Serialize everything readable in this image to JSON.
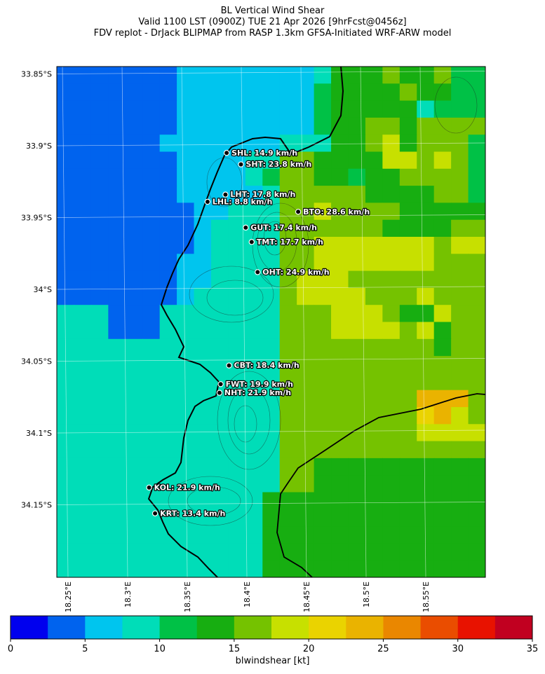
{
  "title": {
    "line1": "BL Vertical Wind Shear",
    "line2": "Valid 1100 LST (0900Z) TUE 21 Apr 2026 [9hrFcst@0456z]",
    "line3": "FDV replot - DrJack BLIPMAP from RASP 1.3km GFSA-Initiated WRF-ARW model"
  },
  "axes": {
    "lat_ticks": [
      "33.85°S",
      "33.9°S",
      "33.95°S",
      "34°S",
      "34.05°S",
      "34.1°S",
      "34.15°S"
    ],
    "lon_ticks": [
      "18.25°E",
      "18.3°E",
      "18.35°E",
      "18.4°E",
      "18.45°E",
      "18.5°E",
      "18.55°E"
    ]
  },
  "stations": [
    {
      "code": "SHL",
      "label": "SHL: 14.9 km/h",
      "lon": 18.383,
      "lat": -33.905
    },
    {
      "code": "SHT",
      "label": "SHT: 23.8 km/h",
      "lon": 18.395,
      "lat": -33.913
    },
    {
      "code": "LHT",
      "label": "LHT: 17.8 km/h",
      "lon": 18.382,
      "lat": -33.934
    },
    {
      "code": "LHL",
      "label": "LHL: 8.8 km/h",
      "lon": 18.367,
      "lat": -33.939
    },
    {
      "code": "BTO",
      "label": "BTO: 28.6 km/h",
      "lon": 18.443,
      "lat": -33.946
    },
    {
      "code": "GUT",
      "label": "GUT: 17.4 km/h",
      "lon": 18.399,
      "lat": -33.957
    },
    {
      "code": "TMT",
      "label": "TMT: 17.7 km/h",
      "lon": 18.404,
      "lat": -33.967
    },
    {
      "code": "OHT",
      "label": "OHT: 24.9 km/h",
      "lon": 18.409,
      "lat": -33.988
    },
    {
      "code": "CBT",
      "label": "CBT: 18.4 km/h",
      "lon": 18.385,
      "lat": -34.053
    },
    {
      "code": "FWT",
      "label": "FWT: 19.9 km/h",
      "lon": 18.378,
      "lat": -34.066
    },
    {
      "code": "NHT",
      "label": "NHT: 21.9 km/h",
      "lon": 18.377,
      "lat": -34.072
    },
    {
      "code": "KOL",
      "label": "KOL: 21.9 km/h",
      "lon": 18.318,
      "lat": -34.138
    },
    {
      "code": "KRT",
      "label": "KRT: 13.4 km/h",
      "lon": 18.323,
      "lat": -34.156
    }
  ],
  "colorbar": {
    "label": "blwindshear [kt]",
    "ticks": [
      "0",
      "5",
      "10",
      "15",
      "20",
      "25",
      "30",
      "35"
    ],
    "colors": [
      "#0000ee",
      "#0063ee",
      "#00c5ee",
      "#00ddb8",
      "#00c146",
      "#17ae11",
      "#75c200",
      "#c7e000",
      "#ead300",
      "#eab300",
      "#ea8700",
      "#ea4d00",
      "#e81200",
      "#c10020"
    ]
  },
  "wind_field": {
    "legend_range_kt": [
      0,
      35
    ],
    "cols": 25,
    "rows": 30,
    "grid": [
      "1111111222222223555655644",
      "1111111222222224555565544",
      "1111111222222224555553444",
      "1111111222222224556656666",
      "1111112222222333556756664",
      "1111111222233665555776764",
      "1111111222234665545566664",
      "1111111222223666665555664",
      "1111111122333667666655555",
      "1111111123333666666555566",
      "1111111123333667777777677",
      "1111111223333667777777666",
      "1111111223333677766666666",
      "1111111233333677776667666",
      "3331113333333666777655766",
      "3331113333333666777767566",
      "3333333333333666666666566",
      "3333333333333666666666666",
      "3333333333333666666666666",
      "3333333333333666666669996",
      "3333333333333666666668976",
      "3333333333333666666667777",
      "3333333333333666666666666",
      "3333333333333665555555555",
      "3333333333333665555555555",
      "3333333333335555555555555",
      "3333333333335555555555555",
      "3333333333335555555555555",
      "3333333333335555555555555",
      "3333333333335555555555555"
    ]
  }
}
